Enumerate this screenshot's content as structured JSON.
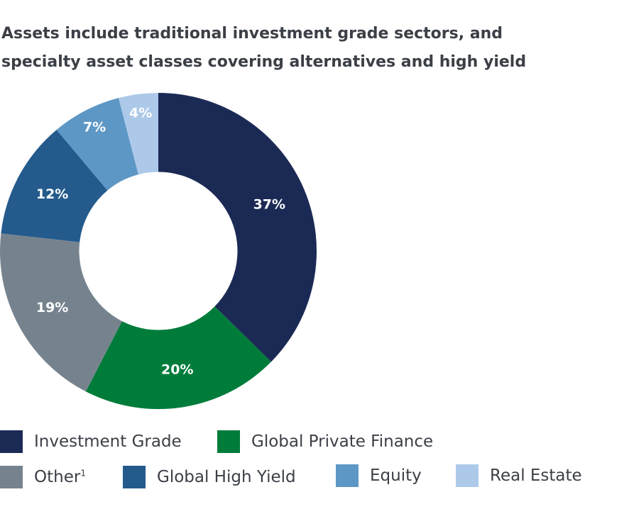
{
  "chart_data": {
    "type": "pie",
    "title_lines": [
      "Assets include traditional investment grade sectors, and",
      "specialty asset classes covering alternatives and high yield"
    ],
    "categories": [
      "Investment Grade",
      "Global Private Finance",
      "Other",
      "Global High Yield",
      "Equity",
      "Real Estate"
    ],
    "values": [
      37,
      20,
      19,
      12,
      7,
      4
    ],
    "value_labels": [
      "37%",
      "20%",
      "19%",
      "12%",
      "7%",
      "4%"
    ],
    "colors": [
      "#1b2a55",
      "#007c3a",
      "#76838f",
      "#245a8c",
      "#5d97c5",
      "#adc9e9"
    ],
    "footnote_markers": [
      "",
      "",
      "1",
      "",
      "",
      ""
    ],
    "legend_placement": "bottom",
    "start_angle_deg": 0,
    "direction": "clockwise",
    "hole_ratio": 0.5
  }
}
